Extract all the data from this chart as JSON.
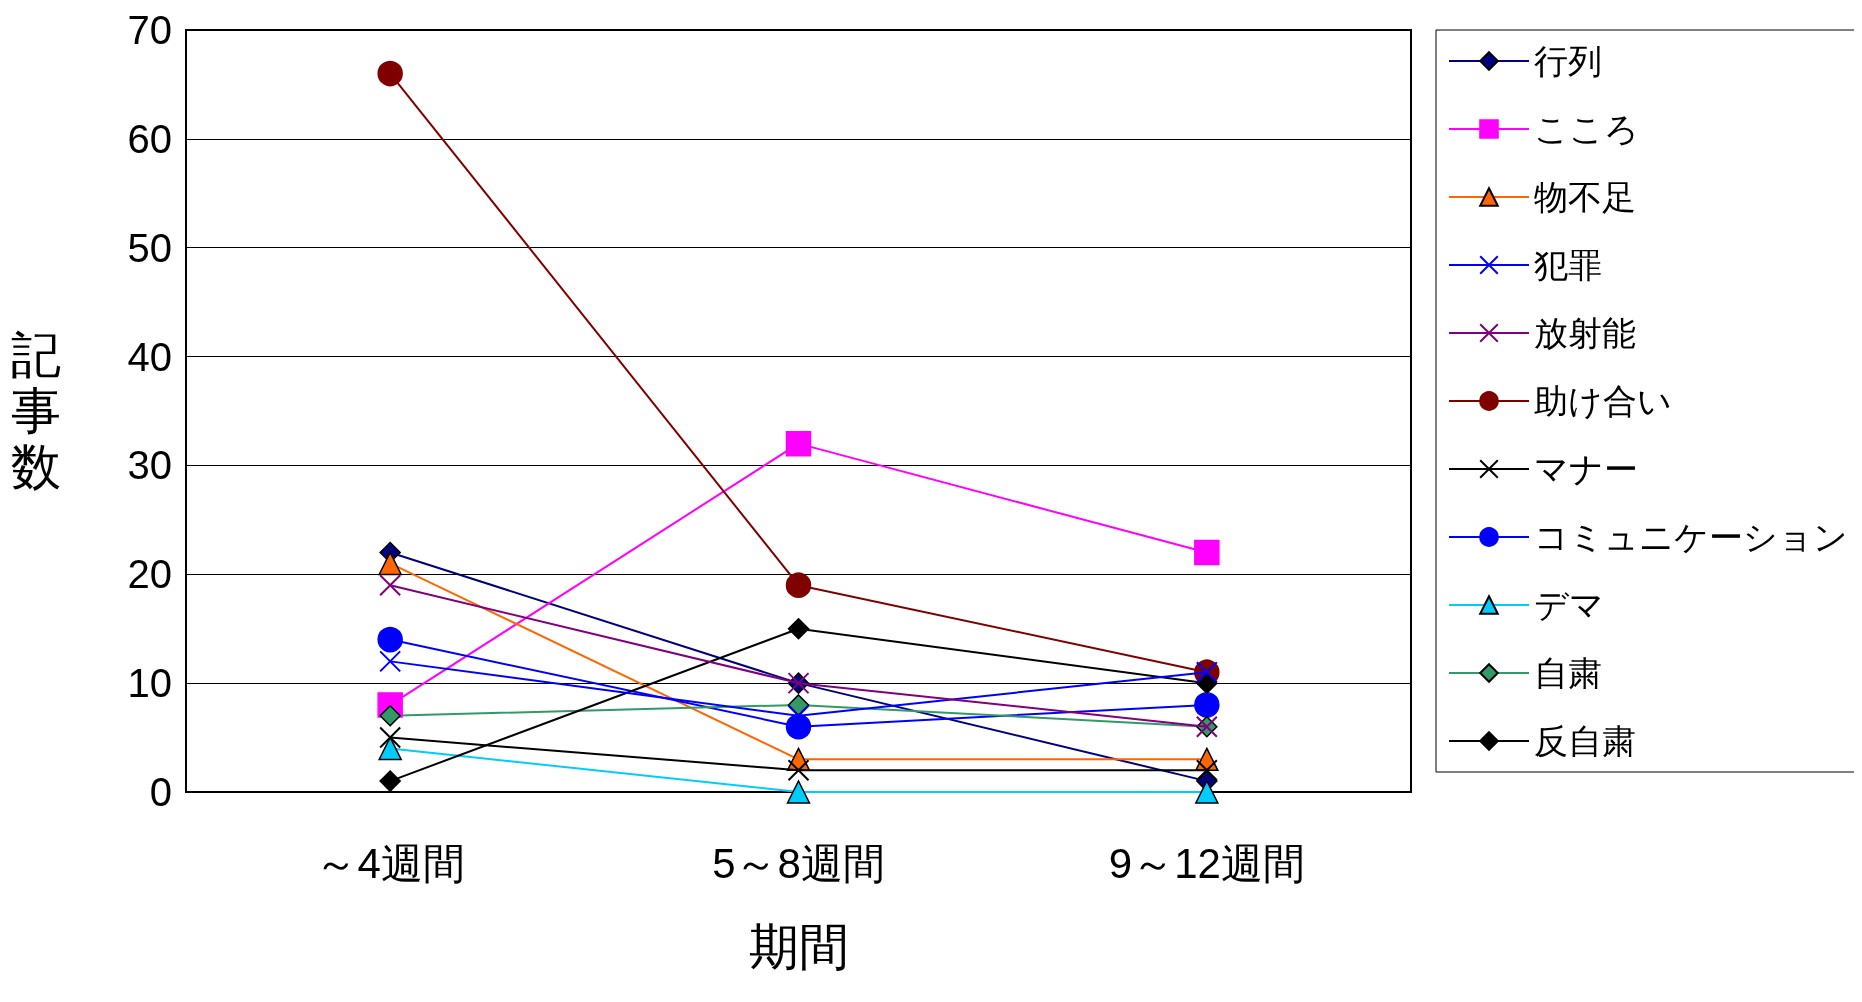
{
  "chart_data": {
    "type": "line",
    "xlabel": "期間",
    "ylabel": "記事数",
    "categories": [
      "～4週間",
      "5～8週間",
      "9～12週間"
    ],
    "ylim": [
      0,
      70
    ],
    "yticks": [
      0,
      10,
      20,
      30,
      40,
      50,
      60,
      70
    ],
    "grid": "y",
    "legend": "right",
    "series": [
      {
        "name": "行列",
        "color": "#000080",
        "marker": "diamond",
        "values": [
          22,
          10,
          1
        ]
      },
      {
        "name": "こころ",
        "color": "#ff00ff",
        "marker": "square",
        "values": [
          8,
          32,
          22
        ]
      },
      {
        "name": "物不足",
        "color": "#ff6600",
        "marker": "triangle",
        "values": [
          21,
          3,
          3
        ]
      },
      {
        "name": "犯罪",
        "color": "#0000ff",
        "marker": "cross",
        "values": [
          12,
          7,
          11
        ]
      },
      {
        "name": "放射能",
        "color": "#800080",
        "marker": "cross",
        "values": [
          19,
          10,
          6
        ]
      },
      {
        "name": "助け合い",
        "color": "#800000",
        "marker": "circle",
        "values": [
          66,
          19,
          11
        ]
      },
      {
        "name": "マナー",
        "color": "#000000",
        "marker": "cross",
        "values": [
          5,
          2,
          2
        ]
      },
      {
        "name": "コミュニケーション",
        "color": "#0000ff",
        "marker": "circle",
        "values": [
          14,
          6,
          8
        ]
      },
      {
        "name": "デマ",
        "color": "#00ccff",
        "marker": "triangle",
        "values": [
          4,
          0,
          0
        ]
      },
      {
        "name": "自粛",
        "color": "#339966",
        "marker": "diamond",
        "values": [
          7,
          8,
          6
        ]
      },
      {
        "name": "反自粛",
        "color": "#000000",
        "marker": "diamond",
        "values": [
          1,
          15,
          10
        ]
      }
    ]
  }
}
